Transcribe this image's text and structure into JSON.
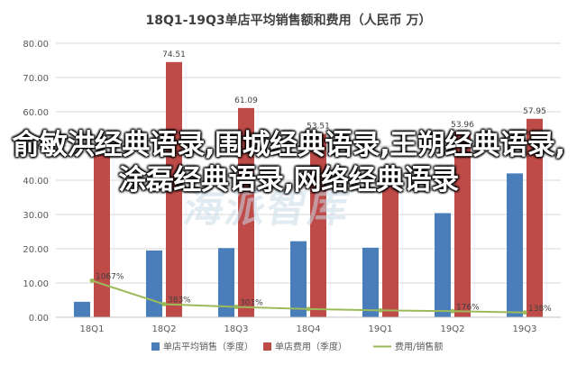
{
  "chart_data": {
    "type": "bar",
    "title": "18Q1-19Q3单店平均销售额和费用（人民币 万）",
    "categories": [
      "18Q1",
      "18Q2",
      "18Q3",
      "18Q4",
      "19Q1",
      "19Q2",
      "19Q3"
    ],
    "ylim": [
      0,
      80
    ],
    "yticks": [
      "0.00",
      "10.00",
      "20.00",
      "30.00",
      "40.00",
      "50.00",
      "60.00",
      "70.00",
      "80.00"
    ],
    "grid": true,
    "legend_position": "bottom",
    "series": [
      {
        "name": "单店平均销售（季度）",
        "type": "bar",
        "color": "#4a7ebb",
        "values": [
          4.5,
          19.5,
          20.2,
          22.2,
          20.3,
          30.4,
          42.0
        ],
        "labels": []
      },
      {
        "name": "单店费用（季度）",
        "type": "bar",
        "color": "#be4b48",
        "values": [
          47.6,
          74.51,
          61.09,
          53.51,
          40.5,
          53.96,
          57.95
        ],
        "labels": [
          "",
          "74.51",
          "61.09",
          "53.51",
          "",
          "53.96",
          "57.95"
        ]
      },
      {
        "name": "费用/销售额",
        "type": "line",
        "color": "#9bbb59",
        "values": [
          10.67,
          3.83,
          3.01,
          2.41,
          2.0,
          1.76,
          1.38
        ],
        "labels": [
          "1067%",
          "383%",
          "301%",
          "",
          "",
          "176%",
          "138%"
        ]
      }
    ]
  },
  "overlay_text": "俞敏洪经典语录,围城经典语录,王朔经典语录,涂磊经典语录,网络经典语录",
  "watermark_text": "海派智库"
}
